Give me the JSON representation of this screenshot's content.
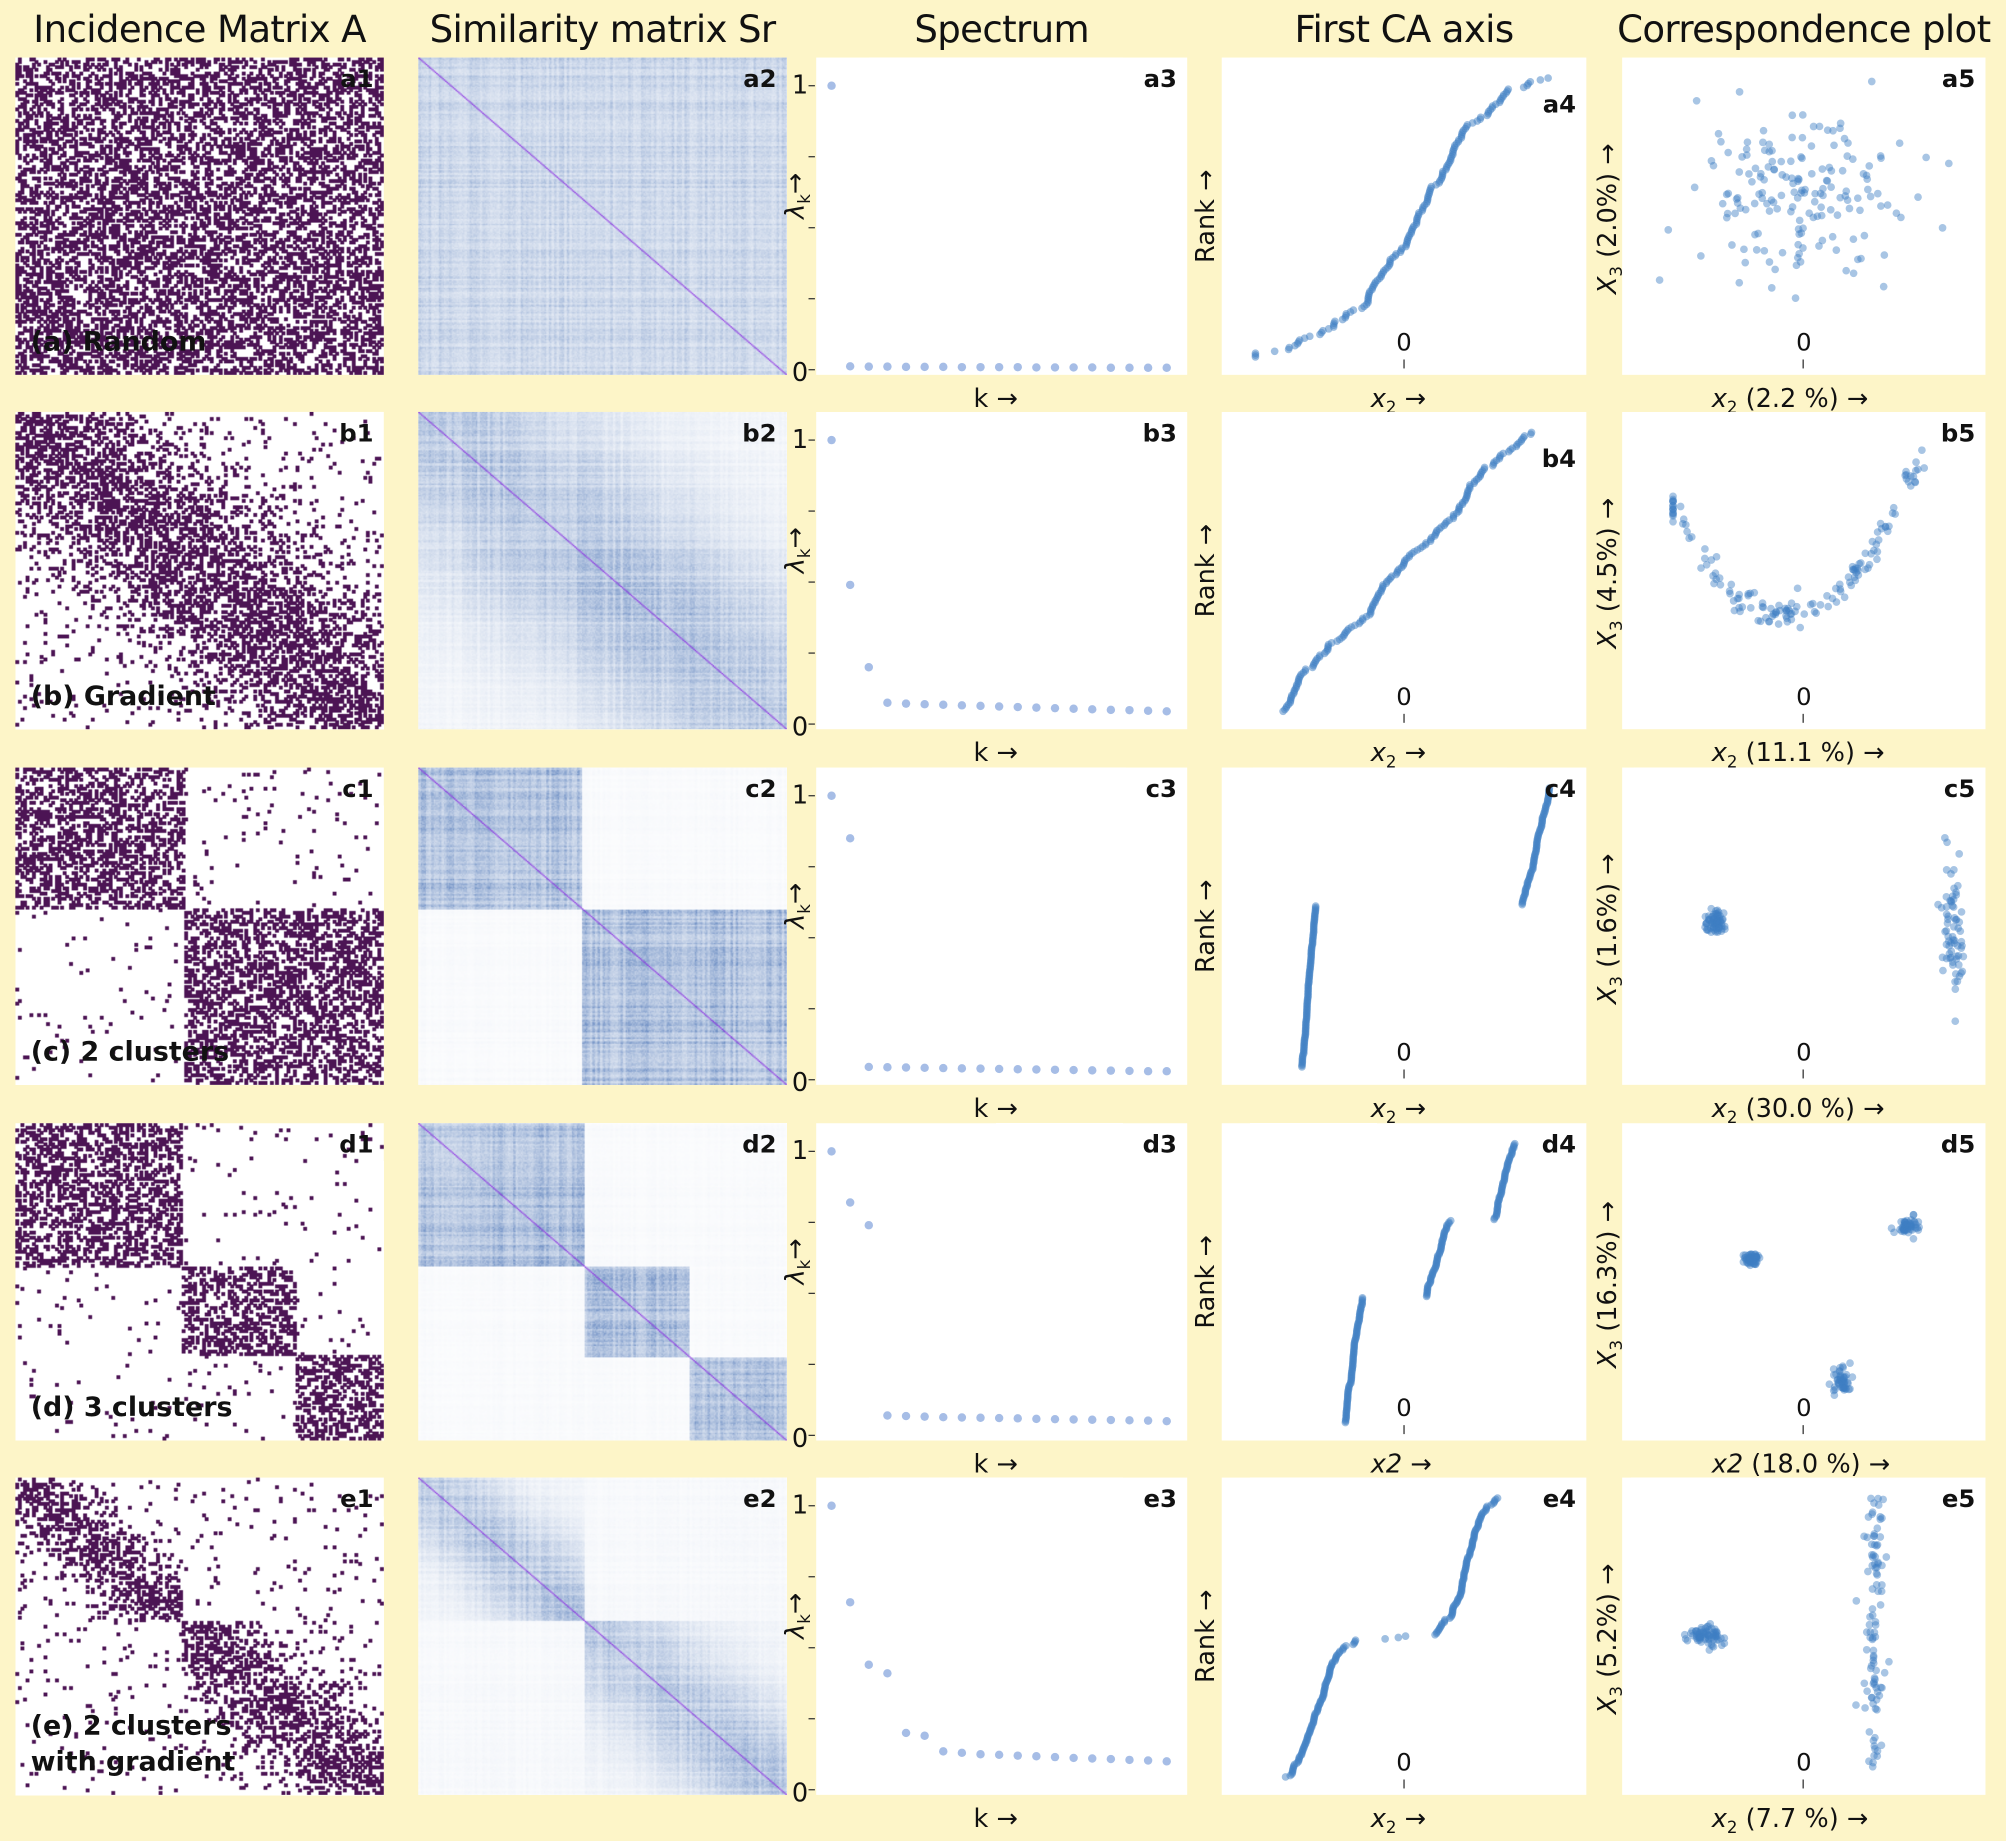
{
  "titles": [
    "Incidence Matrix A",
    "Similarity matrix Sr",
    "Spectrum",
    "First CA axis",
    "Correspondence plot"
  ],
  "axis": {
    "one": "1",
    "zero": "0",
    "lambda": "λ",
    "lambda_sub": "k",
    "up_arrow": "→",
    "k_label": "k →",
    "rank_label": "Rank →",
    "origin": "0"
  },
  "colors": {
    "background": "#fdf5c8",
    "matrix": "#4c1454",
    "similarity": "#4670b4",
    "diagonal": "#8a2be2",
    "spectrum_point": "#a6bde6",
    "scatter_point": "#3f7fc4"
  },
  "chart_data": [
    {
      "type": "scatter",
      "row": "a",
      "label_lines": [
        "(a) Random"
      ],
      "panel_ids": [
        "a1",
        "a2",
        "a3",
        "a4",
        "a5"
      ],
      "matrix": {
        "background": 0.45,
        "blocks": []
      },
      "similarity": {
        "background": 0.28,
        "blocks": []
      },
      "spectrum": [
        1,
        0.012,
        0.011,
        0.011,
        0.01,
        0.01,
        0.01,
        0.009,
        0.009,
        0.009,
        0.009,
        0.008,
        0.008,
        0.008,
        0.008,
        0.007,
        0.007,
        0.007,
        0.007
      ],
      "spectrum_ylim": [
        0,
        1
      ],
      "ca_xlabel": {
        "var": "x",
        "sub": "2",
        "rest": " →"
      },
      "ca_clusters": [
        {
          "dist": "normal",
          "center": 0,
          "spread": 0.33,
          "n": 150
        }
      ],
      "corr_xlabel": {
        "var": "x",
        "sub": "2",
        "rest": " (2.2 %) →"
      },
      "corr_ylabel": {
        "var": "X",
        "sub": "3",
        "rest": " (2.0%) →"
      },
      "corr_clusters": [
        {
          "x": -0.02,
          "y": 0.15,
          "sx": 0.3,
          "sy": 0.3,
          "n": 170,
          "shape": "cloud"
        }
      ]
    },
    {
      "type": "scatter",
      "row": "b",
      "label_lines": [
        "(b) Gradient"
      ],
      "panel_ids": [
        "b1",
        "b2",
        "b3",
        "b4",
        "b5"
      ],
      "matrix": {
        "background": 0.05,
        "blocks": [
          {
            "r": [
              0,
              1
            ],
            "c": [
              0,
              1
            ],
            "gradient": true
          }
        ]
      },
      "similarity": {
        "background": 0.05,
        "blocks": [
          {
            "r": [
              0,
              1
            ],
            "c": [
              0,
              1
            ],
            "gradient": true
          }
        ]
      },
      "spectrum": [
        1,
        0.49,
        0.2,
        0.075,
        0.072,
        0.07,
        0.068,
        0.066,
        0.064,
        0.062,
        0.06,
        0.058,
        0.056,
        0.054,
        0.052,
        0.05,
        0.049,
        0.047,
        0.045
      ],
      "spectrum_ylim": [
        0,
        1
      ],
      "ca_xlabel": {
        "var": "x",
        "sub": "2",
        "rest": " →"
      },
      "ca_clusters": [
        {
          "dist": "uniform",
          "center": 0.02,
          "spread": 0.72,
          "n": 160
        }
      ],
      "corr_xlabel": {
        "var": "x",
        "sub": "2",
        "rest": " (11.1 %) →"
      },
      "corr_ylabel": {
        "var": "X",
        "sub": "3",
        "rest": " (4.5%) →"
      },
      "corr_clusters": [
        {
          "x": -0.1,
          "y": -0.28,
          "sx": 0.7,
          "sy": 0.05,
          "n": 150,
          "shape": "parabola",
          "curvature": 0.82
        }
      ]
    },
    {
      "type": "scatter",
      "row": "c",
      "label_lines": [
        "(c) 2 clusters"
      ],
      "panel_ids": [
        "c1",
        "c2",
        "c3",
        "c4",
        "c5"
      ],
      "matrix": {
        "background": 0.02,
        "blocks": [
          {
            "r": [
              0,
              0.44
            ],
            "c": [
              0,
              0.455
            ],
            "gradient": false
          },
          {
            "r": [
              0.44,
              1
            ],
            "c": [
              0.455,
              1
            ],
            "gradient": false
          }
        ]
      },
      "similarity": {
        "background": 0.03,
        "blocks": [
          {
            "r": [
              0,
              0.44
            ],
            "c": [
              0,
              0.44
            ],
            "gradient": false
          },
          {
            "r": [
              0.44,
              1
            ],
            "c": [
              0.44,
              1
            ],
            "gradient": false
          }
        ]
      },
      "spectrum": [
        1,
        0.85,
        0.045,
        0.044,
        0.043,
        0.042,
        0.041,
        0.04,
        0.039,
        0.038,
        0.037,
        0.036,
        0.035,
        0.034,
        0.033,
        0.032,
        0.031,
        0.03,
        0.03
      ],
      "spectrum_ylim": [
        0,
        1
      ],
      "ca_xlabel": {
        "var": "x",
        "sub": "2",
        "rest": " →"
      },
      "ca_clusters": [
        {
          "dist": "uniform",
          "center": -0.55,
          "spread": 0.04,
          "n": 110
        },
        {
          "dist": "uniform",
          "center": 0.76,
          "spread": 0.08,
          "n": 80
        }
      ],
      "corr_xlabel": {
        "var": "x",
        "sub": "2",
        "rest": " (30.0 %) →"
      },
      "corr_ylabel": {
        "var": "X",
        "sub": "3",
        "rest": " (1.6%) →"
      },
      "corr_clusters": [
        {
          "x": -0.49,
          "y": 0.03,
          "sx": 0.025,
          "sy": 0.04,
          "n": 70,
          "shape": "cloud"
        },
        {
          "x": 0.82,
          "y": 0.0,
          "sx": 0.03,
          "sy": 0.22,
          "n": 70,
          "shape": "cloud"
        }
      ]
    },
    {
      "type": "scatter",
      "row": "d",
      "label_lines": [
        "(d) 3 clusters"
      ],
      "panel_ids": [
        "d1",
        "d2",
        "d3",
        "d4",
        "d5"
      ],
      "matrix": {
        "background": 0.02,
        "blocks": [
          {
            "r": [
              0,
              0.45
            ],
            "c": [
              0,
              0.45
            ],
            "gradient": false
          },
          {
            "r": [
              0.45,
              0.73
            ],
            "c": [
              0.45,
              0.76
            ],
            "gradient": false
          },
          {
            "r": [
              0.73,
              1
            ],
            "c": [
              0.76,
              1
            ],
            "gradient": false
          }
        ]
      },
      "similarity": {
        "background": 0.03,
        "blocks": [
          {
            "r": [
              0,
              0.45
            ],
            "c": [
              0,
              0.45
            ],
            "gradient": false
          },
          {
            "r": [
              0.45,
              0.73
            ],
            "c": [
              0.45,
              0.73
            ],
            "gradient": false
          },
          {
            "r": [
              0.73,
              1
            ],
            "c": [
              0.73,
              1
            ],
            "gradient": false
          }
        ]
      },
      "spectrum": [
        1,
        0.82,
        0.74,
        0.07,
        0.068,
        0.066,
        0.064,
        0.063,
        0.062,
        0.061,
        0.06,
        0.058,
        0.057,
        0.056,
        0.055,
        0.054,
        0.053,
        0.052,
        0.05
      ],
      "spectrum_ylim": [
        0,
        1
      ],
      "ca_xlabel": {
        "var": "x2",
        "sub": "",
        "rest": " →"
      },
      "ca_clusters": [
        {
          "dist": "uniform",
          "center": -0.29,
          "spread": 0.05,
          "n": 90
        },
        {
          "dist": "uniform",
          "center": 0.2,
          "spread": 0.07,
          "n": 55
        },
        {
          "dist": "uniform",
          "center": 0.58,
          "spread": 0.06,
          "n": 55
        }
      ],
      "corr_xlabel": {
        "var": "x2",
        "sub": "",
        "rest": " (18.0 %) →"
      },
      "corr_ylabel": {
        "var": "X",
        "sub": "3",
        "rest": " (16.3%) →"
      },
      "corr_clusters": [
        {
          "x": -0.29,
          "y": 0.14,
          "sx": 0.02,
          "sy": 0.015,
          "n": 60,
          "shape": "cloud"
        },
        {
          "x": 0.58,
          "y": 0.35,
          "sx": 0.03,
          "sy": 0.03,
          "n": 50,
          "shape": "cloud"
        },
        {
          "x": 0.21,
          "y": -0.62,
          "sx": 0.025,
          "sy": 0.05,
          "n": 50,
          "shape": "cloud"
        }
      ]
    },
    {
      "type": "scatter",
      "row": "e",
      "label_lines": [
        "(e) 2 clusters",
        "with gradient"
      ],
      "panel_ids": [
        "e1",
        "e2",
        "e3",
        "e4",
        "e5"
      ],
      "matrix": {
        "background": 0.03,
        "blocks": [
          {
            "r": [
              0,
              0.45
            ],
            "c": [
              0,
              0.45
            ],
            "gradient": true
          },
          {
            "r": [
              0.45,
              1
            ],
            "c": [
              0.45,
              1
            ],
            "gradient": true
          }
        ]
      },
      "similarity": {
        "background": 0.04,
        "blocks": [
          {
            "r": [
              0,
              0.45
            ],
            "c": [
              0,
              0.45
            ],
            "gradient": true
          },
          {
            "r": [
              0.45,
              1
            ],
            "c": [
              0.45,
              1
            ],
            "gradient": true
          }
        ]
      },
      "spectrum": [
        1,
        0.66,
        0.44,
        0.41,
        0.2,
        0.19,
        0.135,
        0.13,
        0.125,
        0.123,
        0.12,
        0.118,
        0.115,
        0.112,
        0.11,
        0.108,
        0.105,
        0.103,
        0.1
      ],
      "spectrum_ylim": [
        0,
        1
      ],
      "ca_xlabel": {
        "var": "x",
        "sub": "2",
        "rest": " →"
      },
      "ca_clusters": [
        {
          "dist": "normal",
          "center": -0.5,
          "spread": 0.09,
          "n": 100
        },
        {
          "dist": "uniform",
          "center": -0.1,
          "spread": 0.15,
          "n": 3
        },
        {
          "dist": "normal",
          "center": 0.36,
          "spread": 0.08,
          "n": 100
        }
      ],
      "corr_xlabel": {
        "var": "x",
        "sub": "2",
        "rest": " (7.7 %) →"
      },
      "corr_ylabel": {
        "var": "X",
        "sub": "3",
        "rest": " (5.2%) →"
      },
      "corr_clusters": [
        {
          "x": -0.53,
          "y": 0.0,
          "sx": 0.05,
          "sy": 0.035,
          "n": 70,
          "shape": "cloud"
        },
        {
          "x": 0.39,
          "y": 0.02,
          "sx": 0.03,
          "sy": 0.85,
          "n": 100,
          "shape": "uniform-y"
        }
      ]
    }
  ]
}
